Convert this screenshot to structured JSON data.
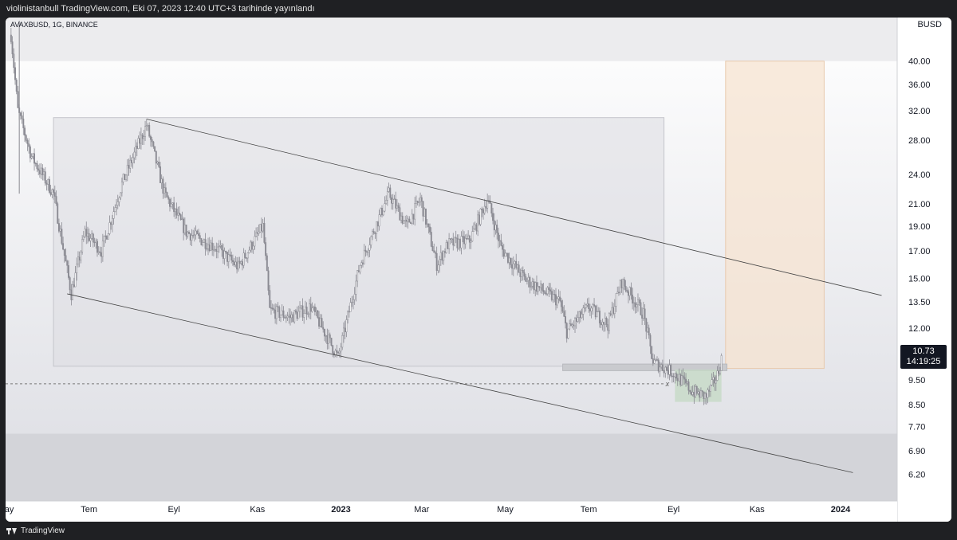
{
  "header": {
    "publish_line": "violinistanbull TradingView.com, Eki 07, 2023 12:40 UTC+3 tarihinde yayınlandı"
  },
  "symbol_line": "AVAXBUSD, 1G, BINANCE",
  "currency": "BUSD",
  "last_price": {
    "value": "10.73",
    "countdown": "14:19:25"
  },
  "footer": {
    "brand": "TradingView"
  },
  "colors": {
    "candles": "#8a8a92",
    "range_box": "#dcdde1",
    "target_box": "#f7e2cf",
    "buy_box": "#c6d9c6",
    "label_bg": "#131722"
  },
  "chart_data": {
    "type": "line",
    "series_kind": "candlestick (daily)",
    "scale": "logarithmic",
    "x_range": [
      "2022-05",
      "2024-01"
    ],
    "ylim": [
      5.5,
      48
    ],
    "y_ticks": [
      "40.00",
      "36.00",
      "32.00",
      "28.00",
      "24.00",
      "21.00",
      "19.00",
      "17.00",
      "15.00",
      "13.50",
      "12.00",
      "10.73",
      "9.50",
      "8.50",
      "7.70",
      "6.90",
      "6.20"
    ],
    "x_ticks": [
      {
        "label": "May",
        "date": "2022-05-01",
        "bold": false
      },
      {
        "label": "Tem",
        "date": "2022-07-01",
        "bold": false
      },
      {
        "label": "Eyl",
        "date": "2022-09-01",
        "bold": false
      },
      {
        "label": "Kas",
        "date": "2022-11-01",
        "bold": false
      },
      {
        "label": "2023",
        "date": "2023-01-01",
        "bold": true
      },
      {
        "label": "Mar",
        "date": "2023-03-01",
        "bold": false
      },
      {
        "label": "May",
        "date": "2023-05-01",
        "bold": false
      },
      {
        "label": "Tem",
        "date": "2023-07-01",
        "bold": false
      },
      {
        "label": "Eyl",
        "date": "2023-09-01",
        "bold": false
      },
      {
        "label": "Kas",
        "date": "2023-11-01",
        "bold": false
      },
      {
        "label": "2024",
        "date": "2024-01-01",
        "bold": true
      }
    ],
    "price_path": [
      {
        "date": "2022-05-05",
        "close": 45.0
      },
      {
        "date": "2022-05-10",
        "close": 32.0
      },
      {
        "date": "2022-05-20",
        "close": 26.0
      },
      {
        "date": "2022-06-05",
        "close": 22.0
      },
      {
        "date": "2022-06-18",
        "close": 14.0
      },
      {
        "date": "2022-06-28",
        "close": 18.5
      },
      {
        "date": "2022-07-10",
        "close": 17.0
      },
      {
        "date": "2022-07-25",
        "close": 23.0
      },
      {
        "date": "2022-08-12",
        "close": 30.0
      },
      {
        "date": "2022-08-25",
        "close": 22.0
      },
      {
        "date": "2022-09-10",
        "close": 18.5
      },
      {
        "date": "2022-10-01",
        "close": 17.3
      },
      {
        "date": "2022-10-18",
        "close": 15.8
      },
      {
        "date": "2022-11-05",
        "close": 19.0
      },
      {
        "date": "2022-11-10",
        "close": 13.0
      },
      {
        "date": "2022-11-25",
        "close": 12.6
      },
      {
        "date": "2022-12-10",
        "close": 13.2
      },
      {
        "date": "2022-12-30",
        "close": 10.5
      },
      {
        "date": "2023-01-15",
        "close": 16.0
      },
      {
        "date": "2023-02-05",
        "close": 22.0
      },
      {
        "date": "2023-02-18",
        "close": 19.0
      },
      {
        "date": "2023-02-28",
        "close": 21.5
      },
      {
        "date": "2023-03-12",
        "close": 16.0
      },
      {
        "date": "2023-03-20",
        "close": 17.5
      },
      {
        "date": "2023-04-05",
        "close": 17.8
      },
      {
        "date": "2023-04-18",
        "close": 21.5
      },
      {
        "date": "2023-04-28",
        "close": 17.2
      },
      {
        "date": "2023-05-15",
        "close": 15.0
      },
      {
        "date": "2023-06-10",
        "close": 13.5
      },
      {
        "date": "2023-06-15",
        "close": 11.8
      },
      {
        "date": "2023-07-01",
        "close": 13.2
      },
      {
        "date": "2023-07-15",
        "close": 12.2
      },
      {
        "date": "2023-07-25",
        "close": 14.8
      },
      {
        "date": "2023-08-10",
        "close": 12.8
      },
      {
        "date": "2023-08-17",
        "close": 10.3
      },
      {
        "date": "2023-09-01",
        "close": 9.8
      },
      {
        "date": "2023-09-15",
        "close": 9.0
      },
      {
        "date": "2023-09-25",
        "close": 8.8
      },
      {
        "date": "2023-10-03",
        "close": 9.7
      },
      {
        "date": "2023-10-07",
        "close": 10.73
      }
    ],
    "annotations": {
      "range_box": {
        "from": "2022-06-05",
        "to": "2023-08-25",
        "low": 10.1,
        "high": 31.0
      },
      "channel_top": {
        "from": {
          "date": "2022-08-12",
          "price": 30.8
        },
        "to": {
          "date": "2024-01-31",
          "price": 13.9
        }
      },
      "channel_bottom": {
        "from": {
          "date": "2022-06-15",
          "price": 14.0
        },
        "to": {
          "date": "2024-01-10",
          "price": 6.25
        }
      },
      "target_box": {
        "from": "2023-10-09",
        "to": "2023-12-20",
        "low": 10.0,
        "high": 40.0
      },
      "buy_box": {
        "from": "2023-09-02",
        "to": "2023-10-06",
        "low": 8.6,
        "high": 9.95
      },
      "dashed_level": {
        "price": 9.33,
        "from": "2022-05-01",
        "to": "2023-09-01",
        "marker": "x"
      },
      "support_zone": {
        "from": "2023-06-12",
        "to": "2023-10-10",
        "low": 9.9,
        "high": 10.2
      }
    }
  }
}
